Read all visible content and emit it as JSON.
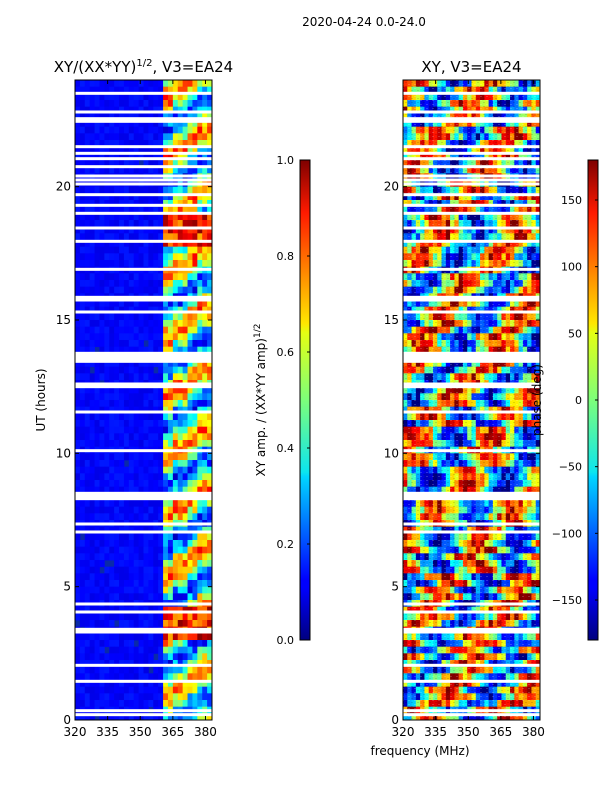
{
  "suptitle": "2020-04-24 0.0-24.0",
  "xlabel_shared": "frequency (MHz)",
  "chart_data": [
    {
      "type": "heatmap",
      "title_main": "XY/(XX*YY)",
      "title_sup": "1/2",
      "title_rest": ", V3=EA24",
      "ylabel": "UT (hours)",
      "xlim": [
        320,
        383
      ],
      "ylim": [
        0,
        24
      ],
      "xticks": [
        320,
        335,
        350,
        365,
        380
      ],
      "yticks": [
        0,
        5,
        10,
        15,
        20
      ],
      "active_band_mhz": [
        360,
        383
      ],
      "flagged_rows_hours": [
        0.2,
        0.35,
        1.45,
        2.05,
        3.3,
        3.4,
        4.05,
        4.35,
        7.05,
        7.35,
        8.3,
        8.4,
        8.5,
        10.1,
        11.55,
        12.5,
        12.6,
        13.45,
        13.55,
        13.65,
        13.75,
        15.3,
        15.75,
        15.85,
        16.9,
        17.95,
        18.45,
        19.0,
        19.3,
        19.7,
        20.1,
        20.25,
        20.4,
        20.75,
        21.05,
        21.25,
        21.5,
        22.45,
        22.55,
        22.8,
        23.5
      ],
      "colorbar": {
        "label": "XY amp. / (XX*YY amp)",
        "label_sup": "1/2",
        "min": 0.0,
        "max": 1.0,
        "ticks": [
          "0.0",
          "0.2",
          "0.4",
          "0.6",
          "0.8",
          "1.0"
        ],
        "tick_values": [
          0.0,
          0.2,
          0.4,
          0.6,
          0.8,
          1.0
        ]
      }
    },
    {
      "type": "heatmap",
      "title": "XY, V3=EA24",
      "xlim": [
        320,
        383
      ],
      "ylim": [
        0,
        24
      ],
      "xticks": [
        320,
        335,
        350,
        365,
        380
      ],
      "yticks": [
        0,
        5,
        10,
        15,
        20
      ],
      "flagged_rows_hours": [
        0.2,
        0.35,
        1.45,
        2.05,
        3.3,
        3.4,
        4.05,
        4.35,
        7.05,
        7.35,
        8.3,
        8.4,
        8.5,
        10.1,
        11.55,
        12.5,
        12.6,
        13.45,
        13.55,
        13.65,
        13.75,
        15.3,
        15.75,
        15.85,
        16.9,
        17.95,
        18.45,
        19.0,
        19.3,
        19.7,
        20.1,
        20.25,
        20.4,
        20.75,
        21.05,
        21.25,
        21.5,
        22.45,
        22.55,
        22.8,
        23.5
      ],
      "colorbar": {
        "label": "phase (deg)",
        "min": -180,
        "max": 180,
        "ticks": [
          "−150",
          "−100",
          "−50",
          "0",
          "50",
          "100",
          "150"
        ],
        "tick_values": [
          -150,
          -100,
          -50,
          0,
          50,
          100,
          150
        ]
      }
    }
  ]
}
